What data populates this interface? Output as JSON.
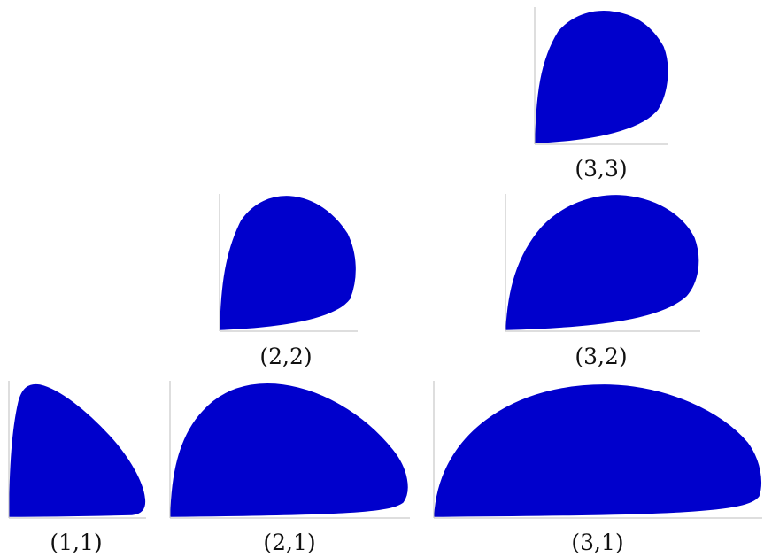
{
  "figure": {
    "fill_color": "#0000cc",
    "axis_color": "#bdbdbd",
    "panels": [
      {
        "id": "p33",
        "label": "(3,3)"
      },
      {
        "id": "p22",
        "label": "(2,2)"
      },
      {
        "id": "p32",
        "label": "(3,2)"
      },
      {
        "id": "p11",
        "label": "(1,1)"
      },
      {
        "id": "p21",
        "label": "(2,1)"
      },
      {
        "id": "p31",
        "label": "(3,1)"
      }
    ]
  }
}
